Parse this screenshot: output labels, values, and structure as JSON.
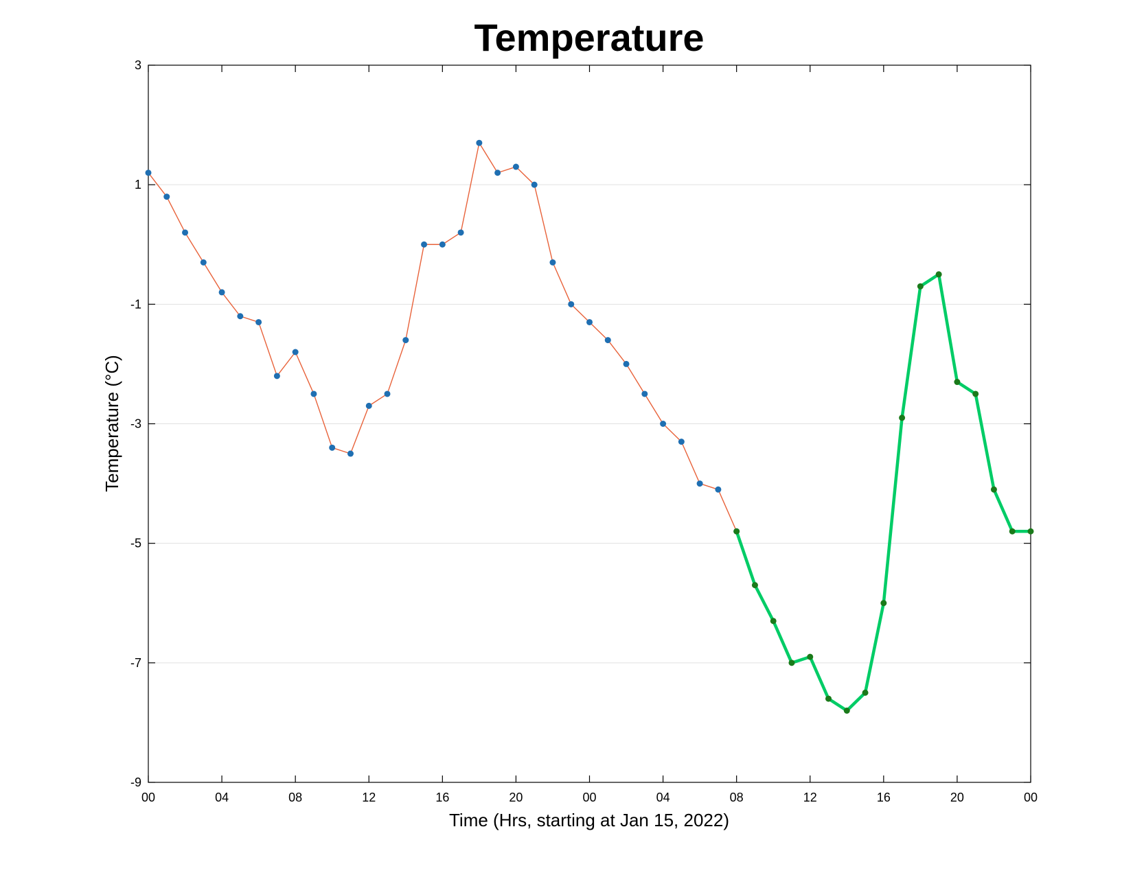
{
  "chart_data": {
    "type": "line",
    "title": "Temperature",
    "xlabel": "Time (Hrs, starting at Jan 15, 2022)",
    "ylabel": "Temperature (°C)",
    "xlim": [
      0,
      48
    ],
    "ylim": [
      -9,
      3
    ],
    "x_tick_values": [
      0,
      4,
      8,
      12,
      16,
      20,
      24,
      28,
      32,
      36,
      40,
      44,
      48
    ],
    "x_tick_labels": [
      "00",
      "04",
      "08",
      "12",
      "16",
      "20",
      "00",
      "04",
      "08",
      "12",
      "16",
      "20",
      "00"
    ],
    "y_ticks": [
      3,
      1,
      -1,
      -3,
      -5,
      -7,
      -9
    ],
    "grid": "horizontal",
    "series": [
      {
        "line_color": "#e8623a",
        "marker_color": "#1f6fb2",
        "x": [
          0,
          1,
          2,
          3,
          4,
          5,
          6,
          7,
          8,
          9,
          10,
          11,
          12,
          13,
          14,
          15,
          16,
          17,
          18,
          19,
          20,
          21,
          22,
          23,
          24,
          25,
          26,
          27,
          28,
          29,
          30,
          31,
          32
        ],
        "values": [
          1.2,
          0.8,
          0.2,
          -0.3,
          -0.8,
          -1.2,
          -1.3,
          -2.2,
          -1.8,
          -2.5,
          -3.4,
          -3.5,
          -2.7,
          -2.5,
          -1.6,
          0.0,
          0.0,
          0.2,
          1.7,
          1.2,
          1.3,
          1.0,
          -0.3,
          -1.0,
          -1.3,
          -1.6,
          -2.0,
          -2.5,
          -3.0,
          -3.3,
          -4.0,
          -4.1,
          -4.8
        ]
      },
      {
        "line_color": "#00cc66",
        "marker_color": "#1a7a1a",
        "x": [
          32,
          33,
          34,
          35,
          36,
          37,
          38,
          39,
          40,
          41,
          42,
          43,
          44,
          45,
          46,
          47,
          48
        ],
        "values": [
          -4.8,
          -5.7,
          -6.3,
          -7.0,
          -6.9,
          -7.6,
          -7.8,
          -7.5,
          -6.0,
          -2.9,
          -0.7,
          -0.5,
          -2.3,
          -2.5,
          -4.1,
          -4.8,
          -4.8
        ]
      }
    ]
  }
}
